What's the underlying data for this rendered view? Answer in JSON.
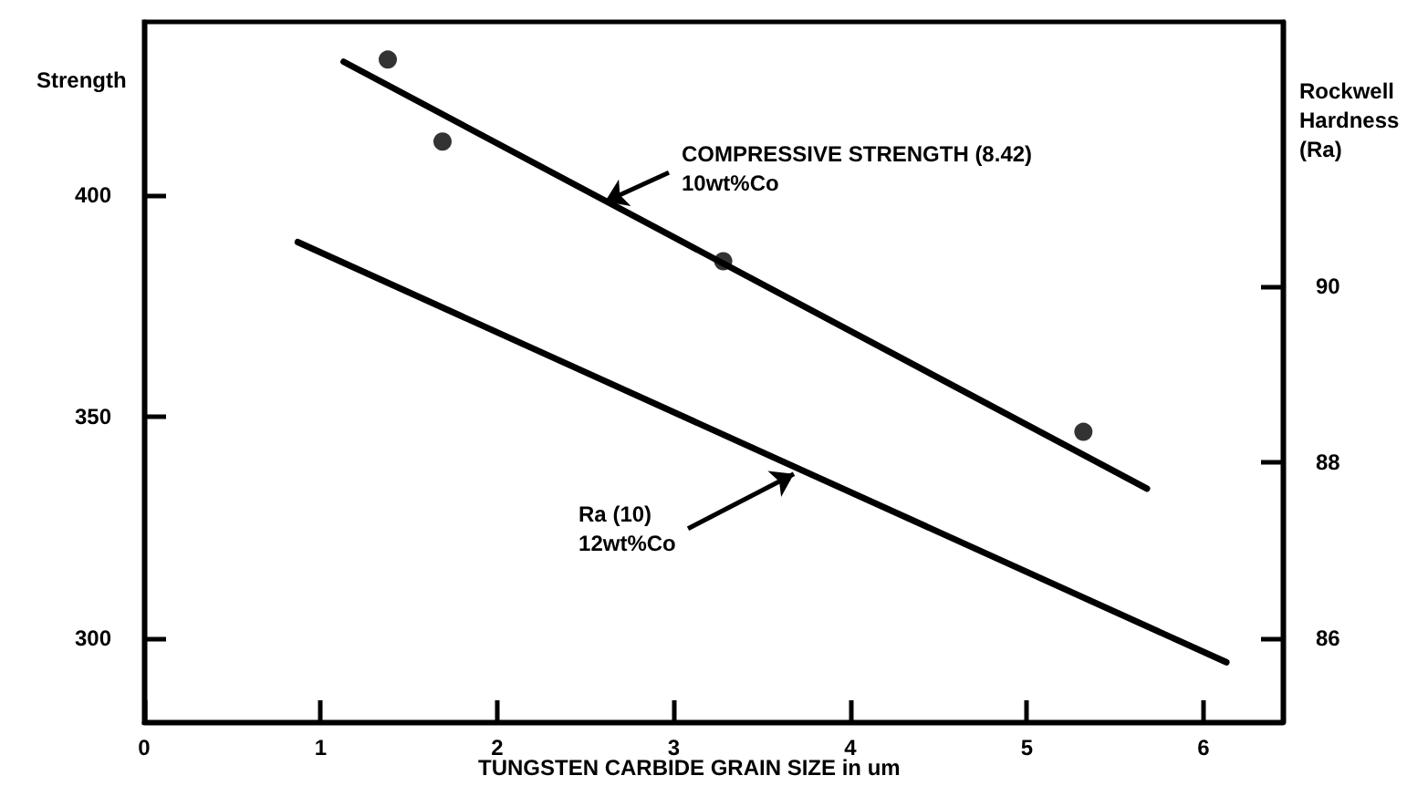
{
  "chart_data": {
    "type": "line",
    "xlabel": "TUNGSTEN CARBIDE GRAIN SIZE in um",
    "ylabel": "Strength",
    "y2label": "Rockwell\nHardness\n(Ra)",
    "xlim": [
      0,
      6.45
    ],
    "xticks": [
      0,
      1,
      2,
      3,
      4,
      5,
      6
    ],
    "ylim": [
      281,
      439
    ],
    "yticks": [
      300,
      350,
      400
    ],
    "y2lim": [
      85.05,
      93
    ],
    "y2ticks": [
      86,
      88,
      90
    ],
    "grid": false,
    "series": [
      {
        "type": "line",
        "marker": "none",
        "color": "#000000",
        "x": [
          1.13,
          5.68
        ],
        "values": [
          430,
          333.7
        ]
      },
      {
        "type": "scatter",
        "marker": "circle",
        "color": "#000000",
        "x": [
          1.38,
          1.69,
          3.28,
          5.32
        ],
        "values": [
          430.5,
          412,
          385,
          346.5
        ]
      },
      {
        "type": "line",
        "marker": "none",
        "axis": "y2",
        "color": "#000000",
        "x": [
          0.87,
          6.13
        ],
        "values": [
          90.5,
          85.73
        ]
      }
    ],
    "annotations": [
      {
        "text": "COMPRESSIVE STRENGTH (8.42)\n10wt%Co",
        "x": 2.61,
        "y": 398.4
      },
      {
        "text": "Ra (10)\n12wt%Co",
        "x": 3.68,
        "y": 337
      }
    ]
  }
}
